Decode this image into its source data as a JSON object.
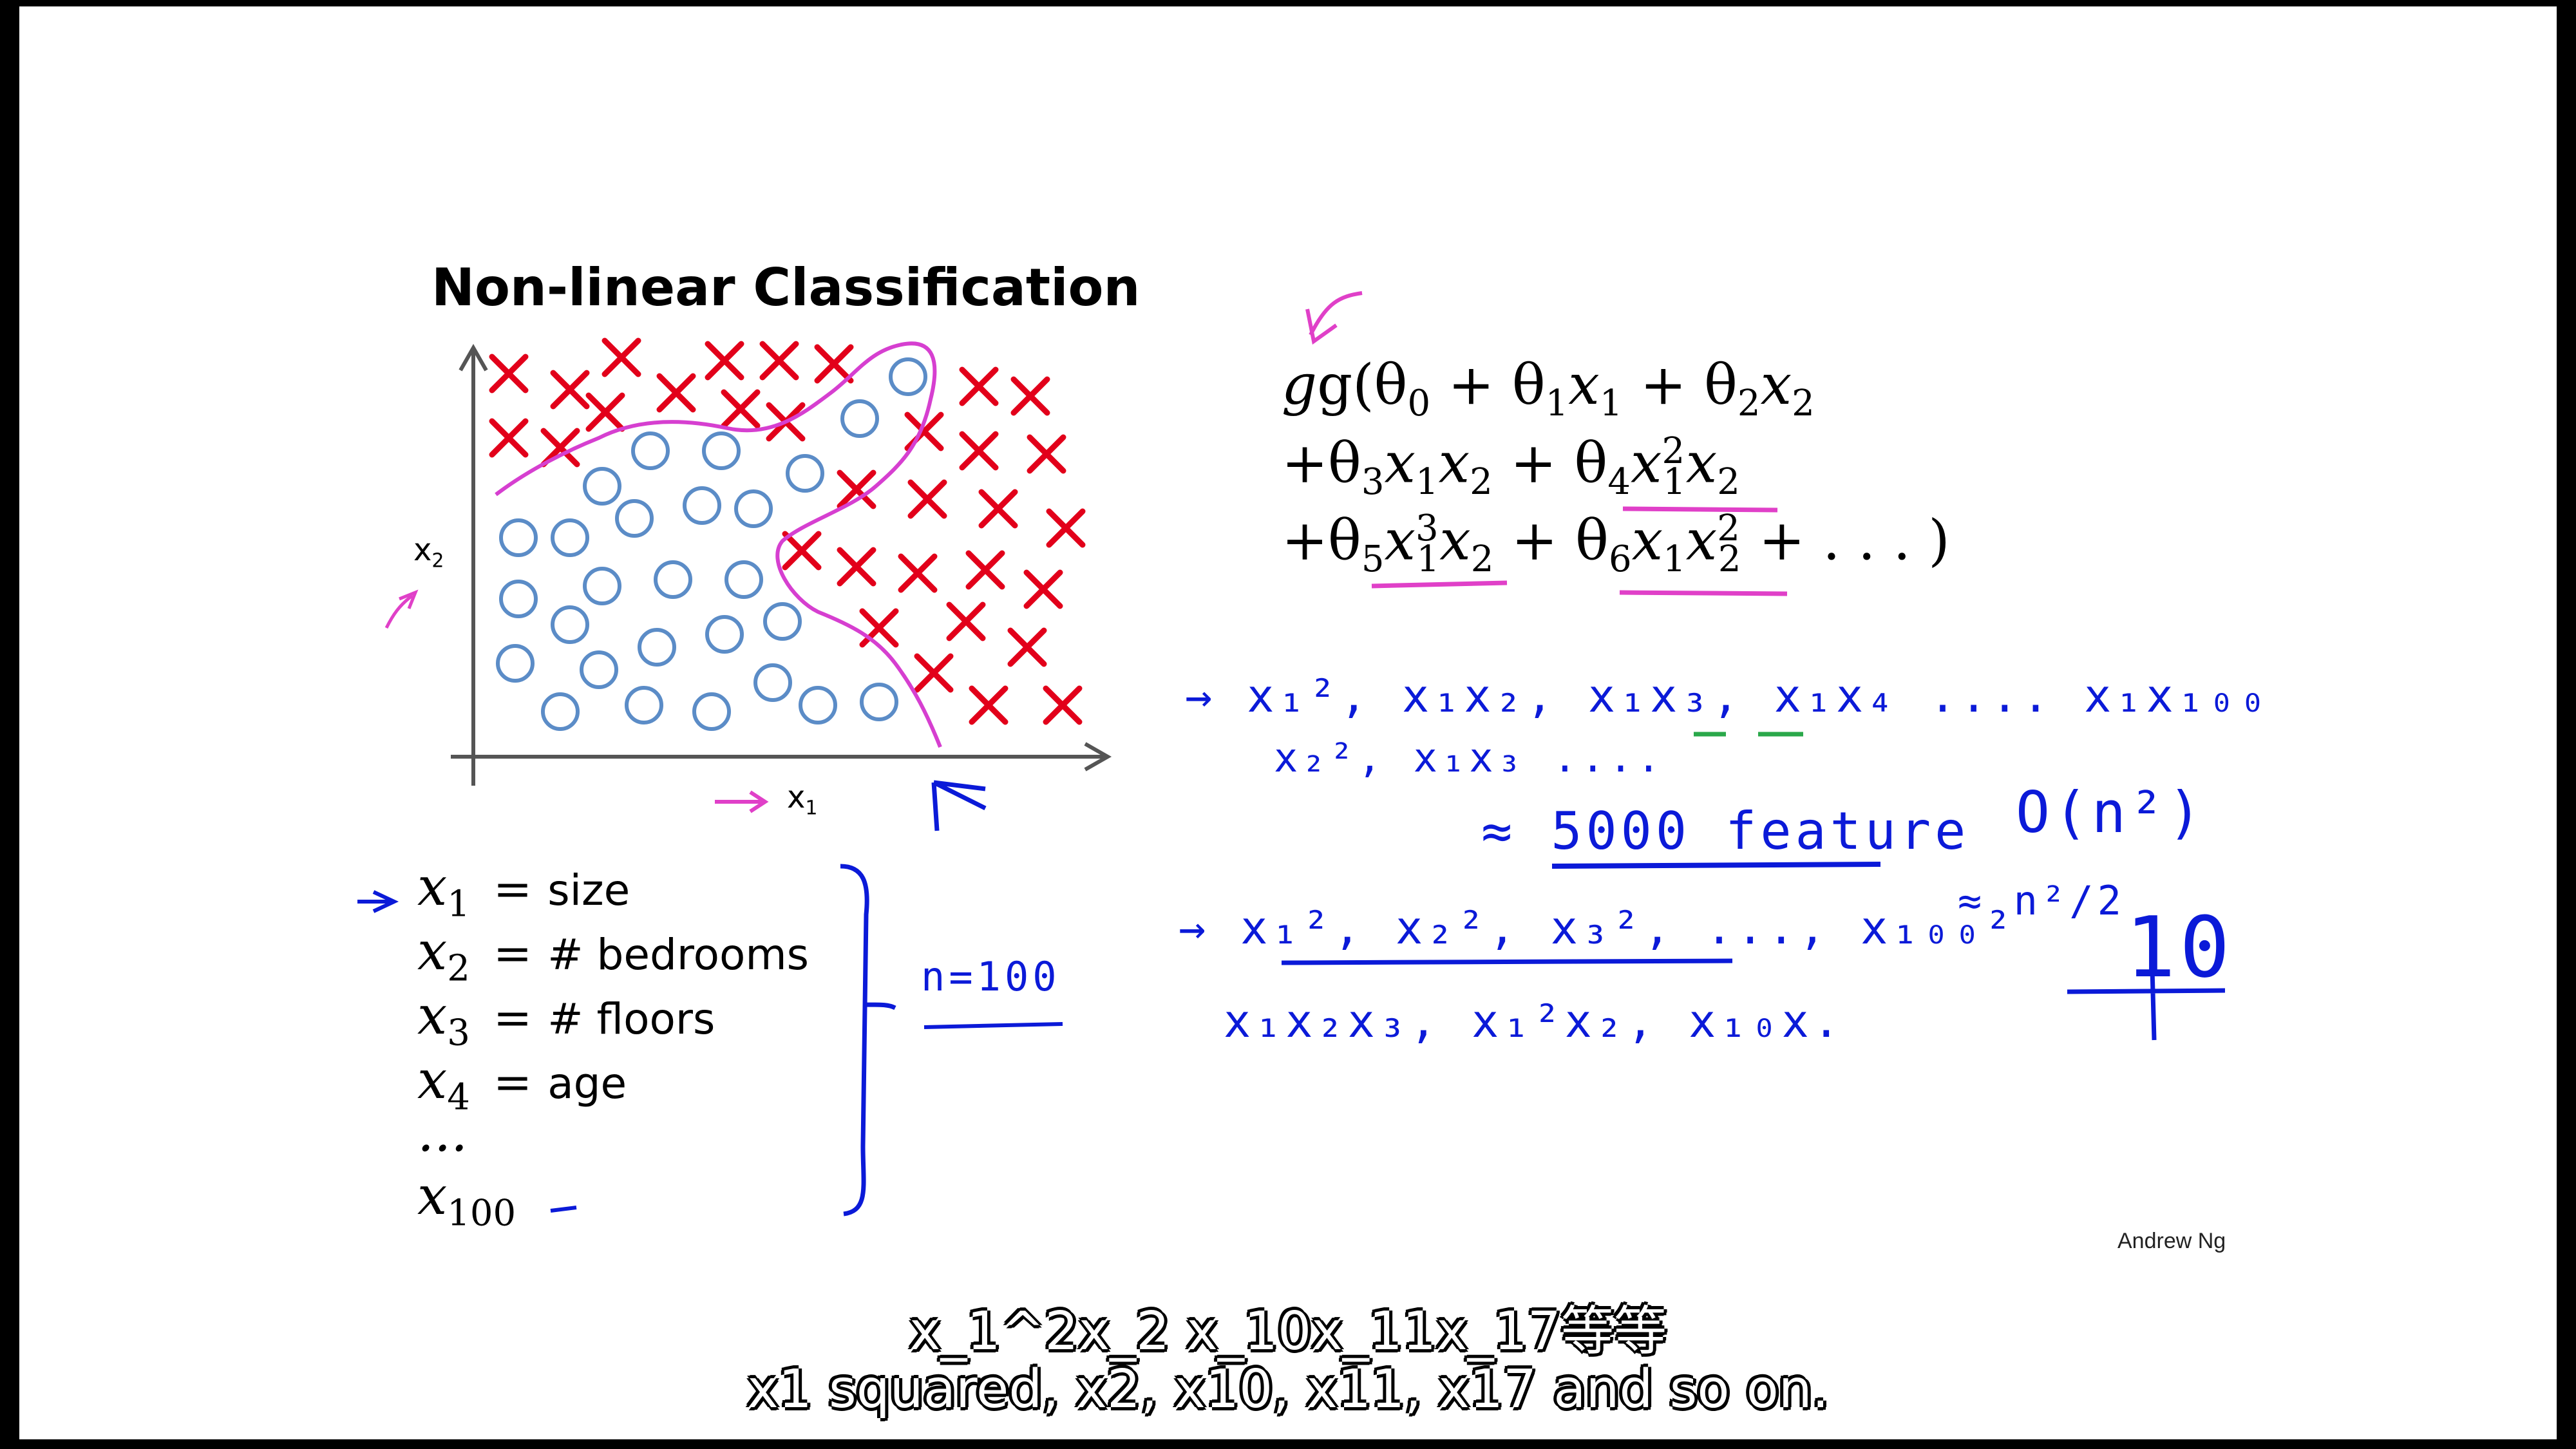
{
  "slide": {
    "title": "Non-linear Classification",
    "axes": {
      "x": "x",
      "x_sub": "1",
      "y": "x",
      "y_sub": "2"
    },
    "features": [
      {
        "var": "x",
        "sub": "1",
        "eq": "=",
        "desc": "size"
      },
      {
        "var": "x",
        "sub": "2",
        "eq": "=",
        "desc": "# bedrooms"
      },
      {
        "var": "x",
        "sub": "3",
        "eq": "=",
        "desc": "# floors"
      },
      {
        "var": "x",
        "sub": "4",
        "eq": "=",
        "desc": "age"
      },
      {
        "var": "...",
        "sub": "",
        "eq": "",
        "desc": ""
      },
      {
        "var": "x",
        "sub": "100",
        "eq": "",
        "desc": ""
      }
    ],
    "credit": "Andrew Ng"
  },
  "hypothesis": {
    "line1": {
      "open": "g(θ",
      "s0": "0",
      "p1": " + θ",
      "s1": "1",
      "v1": "x",
      "s1b": "1",
      "p2": " + θ",
      "s2": "2",
      "v2": "x",
      "s2b": "2"
    },
    "line2": {
      "a": "+θ",
      "s3": "3",
      "b": "x",
      "s1": "1",
      "c": "x",
      "s2": "2",
      "d": " + θ",
      "s4": "4",
      "e": "x",
      "sup": "2",
      "s1b": "1",
      "f": "x",
      "s2b": "2"
    },
    "line3": {
      "a": "+θ",
      "s5": "5",
      "b": "x",
      "sup3": "3",
      "s1": "1",
      "c": "x",
      "s2": "2",
      "d": " + θ",
      "s6": "6",
      "e": "x",
      "s1b": "1",
      "f": "x",
      "sup2": "2",
      "s2b": "2",
      "g": " + . . . )"
    }
  },
  "handwriting": {
    "row1": "→ x₁², x₁x₂, x₁x₃, x₁x₄ .... x₁x₁₀₀",
    "row2": "x₂², x₁x₃ ....",
    "features_count": "≈ 5000 feature",
    "complexity": "O(n²)",
    "approx": "≈ n²/2",
    "n_value": "n=100",
    "squares": "→ x₁², x₂², x₃², ..., x₁₀₀²",
    "products": "x₁x₂x₃, x₁²x₂, x₁₀x.",
    "ten": "10"
  },
  "subtitles": {
    "zh": "x_1^2x_2 x_10x_11x_17等等",
    "en": "x1 squared, x2, x10, x11, x17 and so on."
  },
  "colors": {
    "cross": "#e2001a",
    "circle": "#5b8cc7",
    "boundary": "#d63fd0",
    "ink_blue": "#0b1ad8",
    "ink_pink": "#e040c8",
    "ink_green": "#2aa84a"
  }
}
